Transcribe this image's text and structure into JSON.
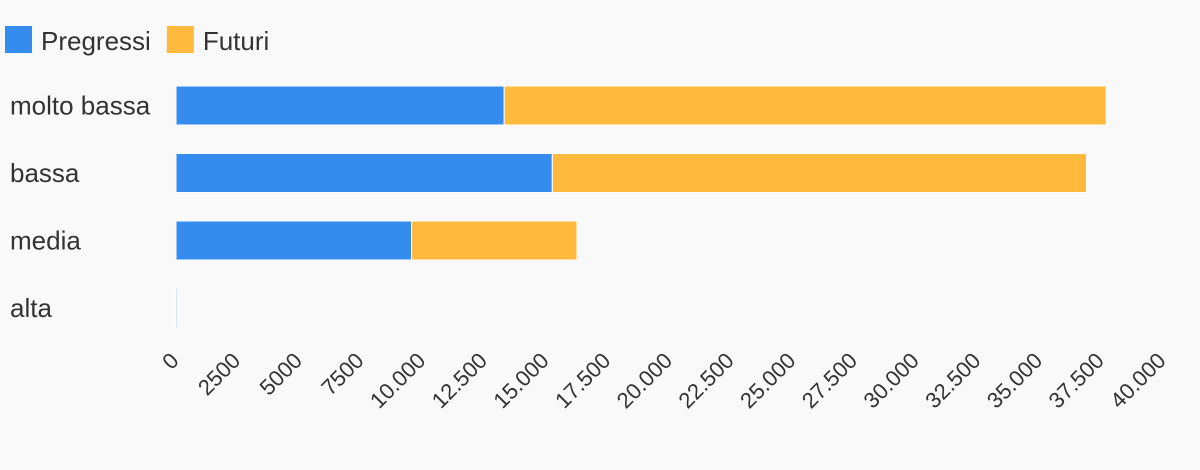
{
  "chart_data": {
    "type": "bar",
    "orientation": "horizontal",
    "stacked": true,
    "categories": [
      "molto bassa",
      "bassa",
      "media",
      "alta"
    ],
    "series": [
      {
        "name": "Pregressi",
        "color": "#348cef",
        "values": [
          13300,
          15250,
          9550,
          50
        ]
      },
      {
        "name": "Futuri",
        "color": "#ffb93c",
        "values": [
          24400,
          21650,
          6700,
          0
        ]
      }
    ],
    "xlim": [
      0,
      40000
    ],
    "ticks": [
      "0",
      "2500",
      "5000",
      "7500",
      "10.000",
      "12.500",
      "15.000",
      "17.500",
      "20.000",
      "22.500",
      "25.000",
      "27.500",
      "30.000",
      "32.500",
      "35.000",
      "37.500",
      "40.000"
    ],
    "tick_values": [
      0,
      2500,
      5000,
      7500,
      10000,
      12500,
      15000,
      17500,
      20000,
      22500,
      25000,
      27500,
      30000,
      32500,
      35000,
      37500,
      40000
    ],
    "legend_position": "top-left",
    "grid": false
  }
}
